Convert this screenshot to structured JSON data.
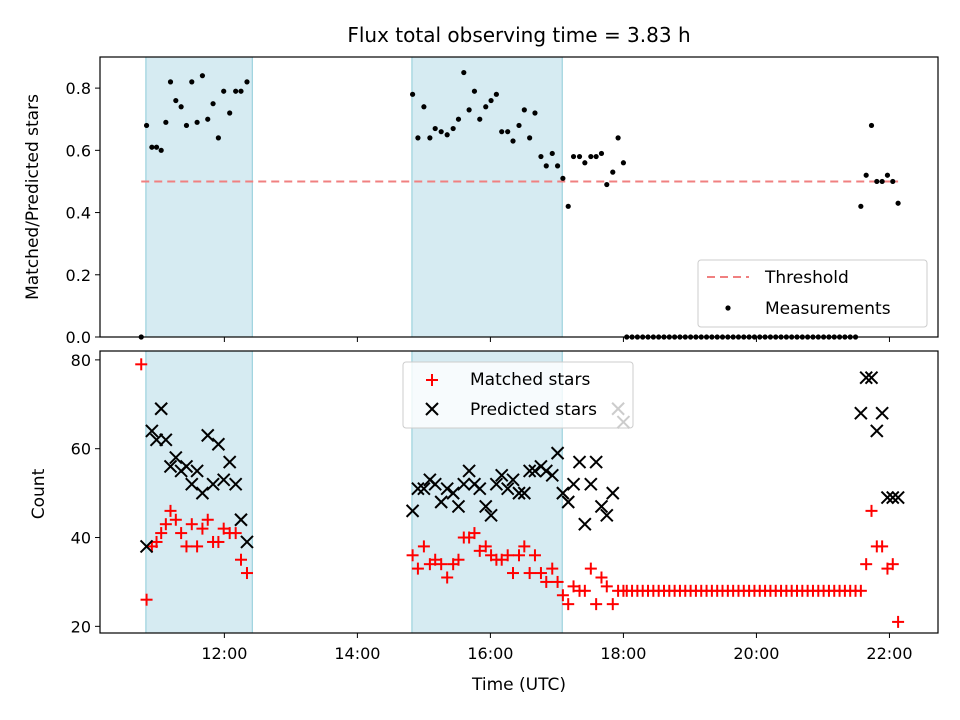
{
  "chart_data": [
    {
      "type": "scatter",
      "title": "Flux total observing time = 3.83 h",
      "ylabel": "Matched/Predicted stars",
      "xlabel": "",
      "xlim": [
        10.13,
        22.73
      ],
      "ylim": [
        0.0,
        0.9
      ],
      "yticks": [
        0.0,
        0.2,
        0.4,
        0.6,
        0.8
      ],
      "ytick_labels": [
        "0.0",
        "0.2",
        "0.4",
        "0.6",
        "0.8"
      ],
      "shaded_intervals": [
        [
          10.82,
          12.42
        ],
        [
          14.82,
          17.08
        ]
      ],
      "threshold": {
        "name": "Threshold",
        "value": 0.5,
        "color": "#f08080"
      },
      "series": [
        {
          "name": "Measurements",
          "color": "#000000",
          "x": [
            10.75,
            10.83,
            10.91,
            10.98,
            11.05,
            11.12,
            11.19,
            11.27,
            11.35,
            11.43,
            11.51,
            11.59,
            11.67,
            11.75,
            11.83,
            11.91,
            11.99,
            12.08,
            12.17,
            12.25,
            12.34,
            14.83,
            14.91,
            15.0,
            15.09,
            15.17,
            15.26,
            15.35,
            15.44,
            15.52,
            15.6,
            15.68,
            15.76,
            15.84,
            15.93,
            16.01,
            16.09,
            16.17,
            16.26,
            16.34,
            16.43,
            16.51,
            16.59,
            16.67,
            16.76,
            16.84,
            16.93,
            17.01,
            17.09,
            17.17,
            17.25,
            17.34,
            17.42,
            17.51,
            17.59,
            17.67,
            17.75,
            17.84,
            17.92,
            18.0,
            18.05,
            18.13,
            18.21,
            18.29,
            18.37,
            18.45,
            18.53,
            18.61,
            18.69,
            18.77,
            18.85,
            18.93,
            19.01,
            19.09,
            19.17,
            19.25,
            19.33,
            19.41,
            19.49,
            19.57,
            19.65,
            19.73,
            19.81,
            19.89,
            19.97,
            20.05,
            20.13,
            20.21,
            20.29,
            20.37,
            20.45,
            20.53,
            20.61,
            20.69,
            20.77,
            20.85,
            20.93,
            21.01,
            21.09,
            21.17,
            21.25,
            21.33,
            21.41,
            21.49,
            21.57,
            21.65,
            21.73,
            21.81,
            21.89,
            21.97,
            22.05,
            22.13
          ],
          "y": [
            0.0,
            0.68,
            0.61,
            0.61,
            0.6,
            0.69,
            0.82,
            0.76,
            0.74,
            0.68,
            0.82,
            0.69,
            0.84,
            0.7,
            0.75,
            0.64,
            0.79,
            0.72,
            0.79,
            0.79,
            0.82,
            0.78,
            0.64,
            0.74,
            0.64,
            0.67,
            0.66,
            0.65,
            0.67,
            0.7,
            0.85,
            0.73,
            0.79,
            0.7,
            0.74,
            0.76,
            0.78,
            0.66,
            0.66,
            0.63,
            0.68,
            0.73,
            0.64,
            0.72,
            0.58,
            0.55,
            0.59,
            0.55,
            0.51,
            0.42,
            0.58,
            0.58,
            0.56,
            0.58,
            0.58,
            0.59,
            0.49,
            0.53,
            0.64,
            0.56,
            0.0,
            0.0,
            0.0,
            0.0,
            0.0,
            0.0,
            0.0,
            0.0,
            0.0,
            0.0,
            0.0,
            0.0,
            0.0,
            0.0,
            0.0,
            0.0,
            0.0,
            0.0,
            0.0,
            0.0,
            0.0,
            0.0,
            0.0,
            0.0,
            0.0,
            0.0,
            0.0,
            0.0,
            0.0,
            0.0,
            0.0,
            0.0,
            0.0,
            0.0,
            0.0,
            0.0,
            0.0,
            0.0,
            0.0,
            0.0,
            0.0,
            0.0,
            0.0,
            0.0,
            0.42,
            0.52,
            0.68,
            0.5,
            0.5,
            0.52,
            0.5,
            0.43
          ]
        }
      ],
      "legend": {
        "placement": "lower-right",
        "entries": [
          "Threshold",
          "Measurements"
        ]
      }
    },
    {
      "type": "scatter",
      "title": "",
      "xlabel": "Time (UTC)",
      "ylabel": "Count",
      "xlim": [
        10.13,
        22.73
      ],
      "ylim": [
        18.5,
        82.0
      ],
      "xticks": [
        12,
        14,
        16,
        18,
        20,
        22
      ],
      "xtick_labels": [
        "12:00",
        "14:00",
        "16:00",
        "18:00",
        "20:00",
        "22:00"
      ],
      "yticks": [
        20,
        40,
        60,
        80
      ],
      "ytick_labels": [
        "20",
        "40",
        "60",
        "80"
      ],
      "shaded_intervals": [
        [
          10.82,
          12.42
        ],
        [
          14.82,
          17.08
        ]
      ],
      "series": [
        {
          "name": "Matched stars",
          "marker": "+",
          "color": "#ff0000",
          "x": [
            10.75,
            10.83,
            10.91,
            10.98,
            11.05,
            11.12,
            11.19,
            11.27,
            11.35,
            11.43,
            11.51,
            11.59,
            11.67,
            11.75,
            11.83,
            11.91,
            11.99,
            12.08,
            12.17,
            12.25,
            12.34,
            14.83,
            14.91,
            15.0,
            15.09,
            15.17,
            15.26,
            15.35,
            15.44,
            15.52,
            15.6,
            15.68,
            15.76,
            15.84,
            15.93,
            16.01,
            16.09,
            16.17,
            16.26,
            16.34,
            16.43,
            16.51,
            16.59,
            16.67,
            16.76,
            16.84,
            16.93,
            17.01,
            17.09,
            17.17,
            17.25,
            17.34,
            17.42,
            17.51,
            17.59,
            17.67,
            17.75,
            17.84,
            17.92,
            18.0,
            18.05,
            18.13,
            18.21,
            18.29,
            18.37,
            18.45,
            18.53,
            18.61,
            18.69,
            18.77,
            18.85,
            18.93,
            19.01,
            19.09,
            19.17,
            19.25,
            19.33,
            19.41,
            19.49,
            19.57,
            19.65,
            19.73,
            19.81,
            19.89,
            19.97,
            20.05,
            20.13,
            20.21,
            20.29,
            20.37,
            20.45,
            20.53,
            20.61,
            20.69,
            20.77,
            20.85,
            20.93,
            21.01,
            21.09,
            21.17,
            21.25,
            21.33,
            21.41,
            21.49,
            21.57,
            21.65,
            21.73,
            21.81,
            21.89,
            21.97,
            22.05,
            22.13
          ],
          "y": [
            79,
            26,
            38,
            39,
            41,
            43,
            46,
            44,
            41,
            38,
            43,
            38,
            42,
            44,
            39,
            39,
            42,
            41,
            41,
            35,
            32,
            36,
            33,
            38,
            34,
            35,
            34,
            31,
            34,
            35,
            40,
            40,
            41,
            37,
            38,
            36,
            35,
            35,
            36,
            32,
            36,
            38,
            32,
            36,
            32,
            30,
            33,
            30,
            27,
            25,
            29,
            28,
            28,
            33,
            25,
            31,
            29,
            25,
            28,
            28,
            28,
            28,
            28,
            28,
            28,
            28,
            28,
            28,
            28,
            28,
            28,
            28,
            28,
            28,
            28,
            28,
            28,
            28,
            28,
            28,
            28,
            28,
            28,
            28,
            28,
            28,
            28,
            28,
            28,
            28,
            28,
            28,
            28,
            28,
            28,
            28,
            28,
            28,
            28,
            28,
            28,
            28,
            28,
            28,
            28,
            34,
            46,
            38,
            38,
            33,
            34,
            21
          ]
        },
        {
          "name": "Predicted stars",
          "marker": "x",
          "color": "#000000",
          "x": [
            10.83,
            10.91,
            10.98,
            11.05,
            11.12,
            11.19,
            11.27,
            11.35,
            11.43,
            11.51,
            11.59,
            11.67,
            11.75,
            11.83,
            11.91,
            11.99,
            12.08,
            12.17,
            12.25,
            12.34,
            14.83,
            14.91,
            15.0,
            15.09,
            15.17,
            15.26,
            15.35,
            15.44,
            15.52,
            15.6,
            15.68,
            15.76,
            15.84,
            15.93,
            16.01,
            16.09,
            16.17,
            16.26,
            16.34,
            16.43,
            16.51,
            16.59,
            16.67,
            16.76,
            16.84,
            16.93,
            17.01,
            17.09,
            17.17,
            17.25,
            17.34,
            17.42,
            17.51,
            17.59,
            17.67,
            17.75,
            17.84,
            17.92,
            18.0,
            21.57,
            21.65,
            21.73,
            21.81,
            21.89,
            21.97,
            22.05,
            22.13
          ],
          "y": [
            38,
            64,
            62,
            69,
            62,
            56,
            58,
            55,
            56,
            52,
            55,
            50,
            63,
            52,
            61,
            53,
            57,
            52,
            44,
            39,
            46,
            51,
            51,
            53,
            52,
            48,
            51,
            50,
            47,
            52,
            55,
            52,
            51,
            47,
            45,
            52,
            54,
            51,
            53,
            50,
            50,
            55,
            55,
            56,
            55,
            54,
            59,
            50,
            48,
            52,
            57,
            43,
            52,
            57,
            47,
            45,
            50,
            69,
            66,
            68,
            76,
            76,
            64,
            68,
            49,
            49,
            49
          ]
        }
      ],
      "legend": {
        "placement": "upper-center",
        "entries": [
          "Matched stars",
          "Predicted stars"
        ]
      }
    }
  ]
}
